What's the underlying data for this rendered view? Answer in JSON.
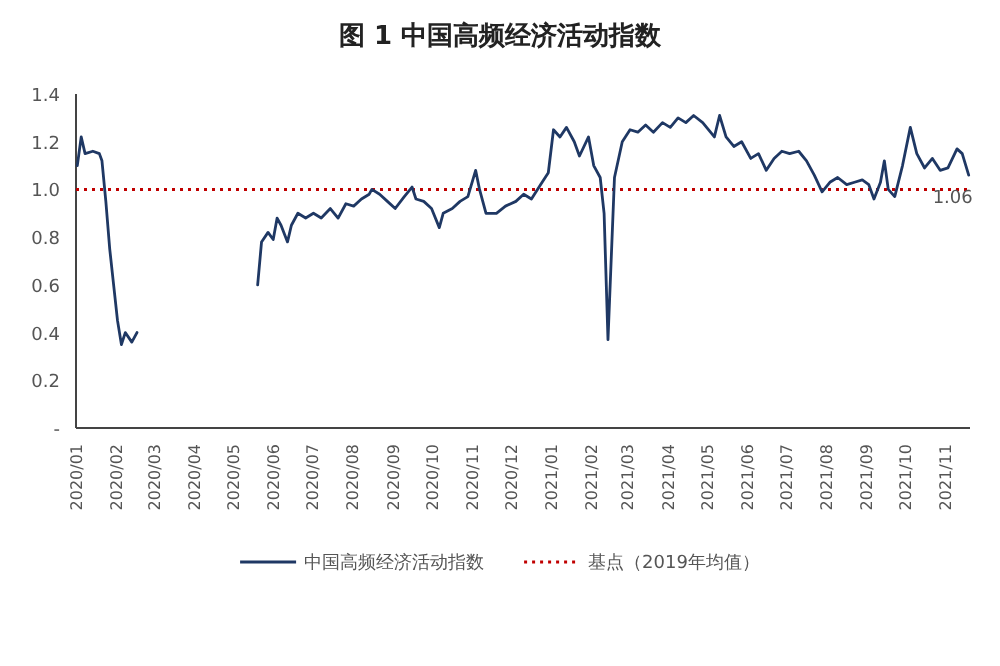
{
  "chart_data": {
    "type": "line",
    "title": "图 1  中国高频经济活动指数",
    "x": [
      "2020-01-02",
      "2020-01-05",
      "2020-01-08",
      "2020-01-14",
      "2020-01-19",
      "2020-01-21",
      "2020-01-24",
      "2020-01-27",
      "2020-01-30",
      "2020-02-02",
      "2020-02-05",
      "2020-02-08",
      "2020-02-13",
      "2020-02-17",
      "2020-05-20",
      "2020-05-23",
      "2020-05-28",
      "2020-06-01",
      "2020-06-04",
      "2020-06-07",
      "2020-06-12",
      "2020-06-15",
      "2020-06-20",
      "2020-06-26",
      "2020-07-02",
      "2020-07-08",
      "2020-07-15",
      "2020-07-21",
      "2020-07-27",
      "2020-08-02",
      "2020-08-08",
      "2020-08-14",
      "2020-08-16",
      "2020-08-22",
      "2020-08-28",
      "2020-09-03",
      "2020-09-10",
      "2020-09-16",
      "2020-09-19",
      "2020-09-25",
      "2020-10-01",
      "2020-10-07",
      "2020-10-10",
      "2020-10-17",
      "2020-10-23",
      "2020-10-29",
      "2020-11-04",
      "2020-11-07",
      "2020-11-12",
      "2020-11-20",
      "2020-11-27",
      "2020-12-05",
      "2020-12-11",
      "2020-12-17",
      "2020-12-24",
      "2020-12-30",
      "2021-01-03",
      "2021-01-08",
      "2021-01-13",
      "2021-01-19",
      "2021-01-23",
      "2021-01-30",
      "2021-02-03",
      "2021-02-08",
      "2021-02-11",
      "2021-02-14",
      "2021-02-19",
      "2021-02-25",
      "2021-03-03",
      "2021-03-09",
      "2021-03-15",
      "2021-03-21",
      "2021-03-28",
      "2021-04-03",
      "2021-04-09",
      "2021-04-15",
      "2021-04-21",
      "2021-04-28",
      "2021-05-04",
      "2021-05-07",
      "2021-05-11",
      "2021-05-16",
      "2021-05-22",
      "2021-05-28",
      "2021-06-04",
      "2021-06-10",
      "2021-06-16",
      "2021-06-22",
      "2021-06-28",
      "2021-07-04",
      "2021-07-11",
      "2021-07-17",
      "2021-07-23",
      "2021-07-29",
      "2021-08-04",
      "2021-08-10",
      "2021-08-17",
      "2021-08-23",
      "2021-08-29",
      "2021-09-03",
      "2021-09-07",
      "2021-09-12",
      "2021-09-15",
      "2021-09-18",
      "2021-09-23",
      "2021-09-29",
      "2021-10-05",
      "2021-10-10",
      "2021-10-16",
      "2021-10-22",
      "2021-10-28",
      "2021-11-03",
      "2021-11-10",
      "2021-11-14",
      "2021-11-19"
    ],
    "series": [
      {
        "name": "中国高频经济活动指数",
        "color": "#1f3864",
        "values": [
          1.1,
          1.22,
          1.15,
          1.16,
          1.15,
          1.12,
          0.95,
          0.75,
          0.6,
          0.45,
          0.35,
          0.4,
          0.36,
          0.4,
          0.6,
          0.78,
          0.82,
          0.79,
          0.88,
          0.85,
          0.78,
          0.85,
          0.9,
          0.88,
          0.9,
          0.88,
          0.92,
          0.88,
          0.94,
          0.93,
          0.96,
          0.98,
          1.0,
          0.98,
          0.95,
          0.92,
          0.97,
          1.01,
          0.96,
          0.95,
          0.92,
          0.84,
          0.9,
          0.92,
          0.95,
          0.97,
          1.08,
          1.0,
          0.9,
          0.9,
          0.93,
          0.95,
          0.98,
          0.96,
          1.02,
          1.07,
          1.25,
          1.22,
          1.26,
          1.2,
          1.14,
          1.22,
          1.1,
          1.05,
          0.9,
          0.37,
          1.05,
          1.2,
          1.25,
          1.24,
          1.27,
          1.24,
          1.28,
          1.26,
          1.3,
          1.28,
          1.31,
          1.28,
          1.24,
          1.22,
          1.31,
          1.22,
          1.18,
          1.2,
          1.13,
          1.15,
          1.08,
          1.13,
          1.16,
          1.15,
          1.16,
          1.12,
          1.06,
          0.99,
          1.03,
          1.05,
          1.02,
          1.03,
          1.04,
          1.02,
          0.96,
          1.03,
          1.12,
          1.0,
          0.97,
          1.1,
          1.26,
          1.15,
          1.09,
          1.13,
          1.08,
          1.09,
          1.17,
          1.15,
          1.06
        ]
      }
    ],
    "ref_lines": [
      {
        "axis": "y",
        "value": 1.0,
        "label": "基点（2019年均值）",
        "color": "#c00000",
        "line_style": "dotted"
      }
    ],
    "annotations": [
      {
        "text": "1.06",
        "x": "2021-11-19",
        "y": 1.06
      }
    ],
    "xlim": [
      "2020-01-01",
      "2021-11-20"
    ],
    "xticks": [
      {
        "value": "2020-01-01",
        "label": "2020/01"
      },
      {
        "value": "2020-02-01",
        "label": "2020/02"
      },
      {
        "value": "2020-03-01",
        "label": "2020/03"
      },
      {
        "value": "2020-04-01",
        "label": "2020/04"
      },
      {
        "value": "2020-05-01",
        "label": "2020/05"
      },
      {
        "value": "2020-06-01",
        "label": "2020/06"
      },
      {
        "value": "2020-07-01",
        "label": "2020/07"
      },
      {
        "value": "2020-08-01",
        "label": "2020/08"
      },
      {
        "value": "2020-09-01",
        "label": "2020/09"
      },
      {
        "value": "2020-10-01",
        "label": "2020/10"
      },
      {
        "value": "2020-11-01",
        "label": "2020/11"
      },
      {
        "value": "2020-12-01",
        "label": "2020/12"
      },
      {
        "value": "2021-01-01",
        "label": "2021/01"
      },
      {
        "value": "2021-02-01",
        "label": "2021/02"
      },
      {
        "value": "2021-03-01",
        "label": "2021/03"
      },
      {
        "value": "2021-04-01",
        "label": "2021/04"
      },
      {
        "value": "2021-05-01",
        "label": "2021/05"
      },
      {
        "value": "2021-06-01",
        "label": "2021/06"
      },
      {
        "value": "2021-07-01",
        "label": "2021/07"
      },
      {
        "value": "2021-08-01",
        "label": "2021/08"
      },
      {
        "value": "2021-09-01",
        "label": "2021/09"
      },
      {
        "value": "2021-10-01",
        "label": "2021/10"
      },
      {
        "value": "2021-11-01",
        "label": "2021/11"
      }
    ],
    "ylim": [
      0,
      1.4
    ],
    "yticks": [
      {
        "value": 0,
        "label": "-"
      },
      {
        "value": 0.2,
        "label": "0.2"
      },
      {
        "value": 0.4,
        "label": "0.4"
      },
      {
        "value": 0.6,
        "label": "0.6"
      },
      {
        "value": 0.8,
        "label": "0.8"
      },
      {
        "value": 1.0,
        "label": "1.0"
      },
      {
        "value": 1.2,
        "label": "1.2"
      },
      {
        "value": 1.4,
        "label": "1.4"
      }
    ],
    "grid": false,
    "legend": "bottom",
    "line_style": "solid"
  }
}
